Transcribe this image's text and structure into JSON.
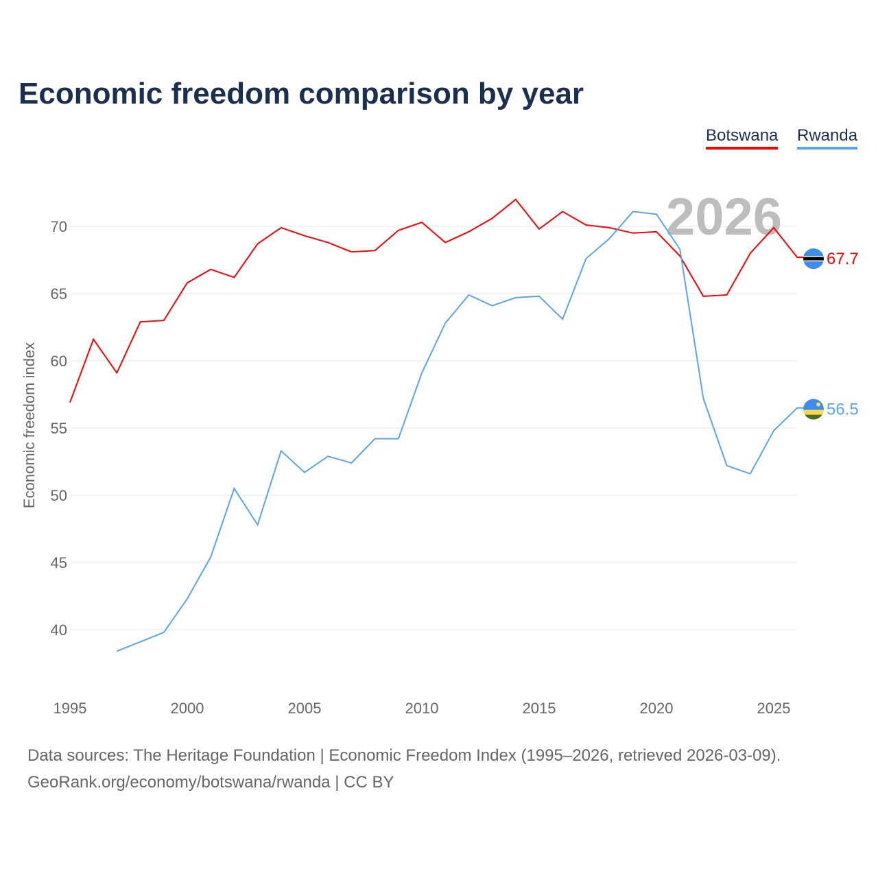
{
  "chart_data": {
    "type": "line",
    "title": "Economic freedom comparison by year",
    "ylabel": "Economic freedom index",
    "xlabel": "",
    "ylim": [
      34,
      73
    ],
    "xlim": [
      1995,
      2026
    ],
    "yticks": [
      40,
      45,
      50,
      55,
      60,
      65,
      70
    ],
    "xticks": [
      1995,
      2000,
      2005,
      2010,
      2015,
      2020,
      2025
    ],
    "grid": true,
    "legend_placement": "top-right",
    "year_watermark": "2026",
    "series": [
      {
        "name": "Botswana",
        "color": "#ff0000",
        "end_label": "67.7",
        "start_year": 1995,
        "values": [
          56.9,
          61.6,
          59.1,
          62.9,
          63.0,
          65.8,
          66.8,
          66.2,
          68.7,
          69.9,
          69.3,
          68.8,
          68.1,
          68.2,
          69.7,
          70.3,
          68.8,
          69.6,
          70.6,
          72.0,
          69.8,
          71.1,
          70.1,
          69.9,
          69.5,
          69.6,
          67.8,
          64.8,
          64.9,
          68.0,
          69.9,
          67.7
        ]
      },
      {
        "name": "Rwanda",
        "color": "#5aa5ee",
        "end_label": "56.5",
        "start_year": 1997,
        "values": [
          38.4,
          39.1,
          39.8,
          42.3,
          45.4,
          50.5,
          47.8,
          53.3,
          51.7,
          52.9,
          52.4,
          54.2,
          54.2,
          59.1,
          62.8,
          64.9,
          64.1,
          64.7,
          64.8,
          63.1,
          67.6,
          69.1,
          71.1,
          70.9,
          68.3,
          57.2,
          52.2,
          51.6,
          54.8,
          56.5
        ]
      }
    ]
  },
  "footer": {
    "line1": "Data sources: The Heritage Foundation | Economic Freedom Index (1995–2026, retrieved 2026-03-09).",
    "line2": "GeoRank.org/economy/botswana/rwanda | CC BY"
  }
}
